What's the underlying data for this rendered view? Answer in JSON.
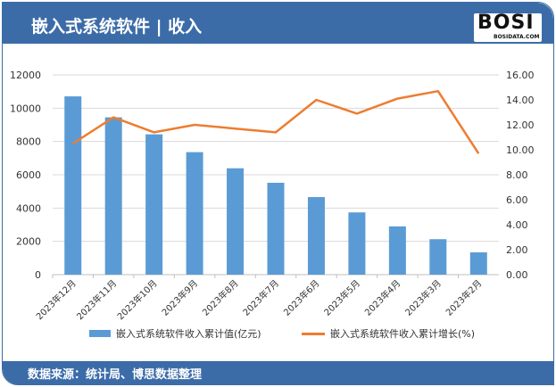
{
  "header": {
    "title": "嵌入式系统软件 | 收入",
    "logo_text": "BOSI",
    "logo_sub": "BOSIDATA.COM"
  },
  "footer": {
    "source": "数据来源：统计局、博思数据整理"
  },
  "colors": {
    "header": "#3c6ca8",
    "bar": "#5b9bd5",
    "line": "#ed7d31"
  },
  "chart_data": {
    "type": "bar+line",
    "categories": [
      "2023年12月",
      "2023年11月",
      "2023年10月",
      "2023年9月",
      "2023年8月",
      "2023年7月",
      "2023年6月",
      "2023年5月",
      "2023年4月",
      "2023年3月",
      "2023年2月"
    ],
    "series": [
      {
        "name": "嵌入式系统软件收入累计值(亿元)",
        "type": "bar",
        "axis": "left",
        "values": [
          10710,
          9450,
          8430,
          7360,
          6390,
          5520,
          4660,
          3740,
          2900,
          2130,
          1340
        ]
      },
      {
        "name": "嵌入式系统软件收入累计增长(%)",
        "type": "line",
        "axis": "right",
        "values": [
          10.5,
          12.6,
          11.4,
          12.0,
          11.7,
          11.4,
          14.0,
          12.9,
          14.1,
          14.7,
          9.7
        ]
      }
    ],
    "left_axis": {
      "ylim": [
        0,
        12000
      ],
      "ticks": [
        "0",
        "2000",
        "4000",
        "6000",
        "8000",
        "10000",
        "12000"
      ]
    },
    "right_axis": {
      "ylim": [
        0,
        16
      ],
      "ticks": [
        "0.00",
        "2.00",
        "4.00",
        "6.00",
        "8.00",
        "10.00",
        "12.00",
        "14.00",
        "16.00"
      ]
    },
    "grid": true,
    "legend": "bottom"
  }
}
